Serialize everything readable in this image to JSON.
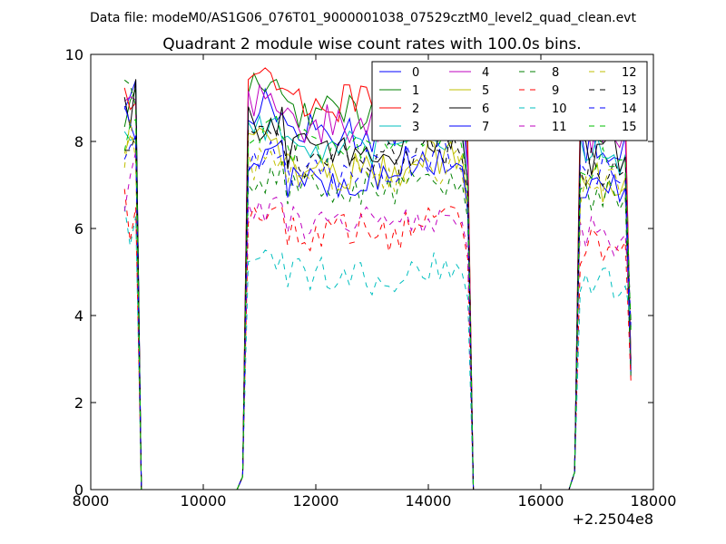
{
  "chart_data": {
    "type": "line",
    "suptitle": "Data file: modeM0/AS1G06_076T01_9000001038_07529cztM0_level2_quad_clean.evt",
    "title": "Quadrant 2 module wise count rates with 100.0s bins.",
    "xlabel": "",
    "ylabel": "",
    "xlim": [
      8000,
      18000
    ],
    "ylim": [
      0,
      10
    ],
    "x_offset_label": "+2.2504e8",
    "x_ticks": [
      "8000",
      "10000",
      "12000",
      "14000",
      "16000",
      "18000"
    ],
    "y_ticks": [
      "0",
      "2",
      "4",
      "6",
      "8",
      "10"
    ],
    "legend_position": "top-right",
    "x": [
      8600,
      8700,
      8800,
      8900,
      9000,
      10500,
      10600,
      10700,
      10800,
      10900,
      11000,
      11100,
      11200,
      11300,
      11400,
      11500,
      11600,
      11700,
      11800,
      11900,
      12000,
      12100,
      12200,
      12300,
      12400,
      12500,
      12600,
      12700,
      12800,
      12900,
      13000,
      13100,
      13200,
      13300,
      13400,
      13500,
      13600,
      13700,
      13800,
      13900,
      14000,
      14100,
      14200,
      14300,
      14400,
      14500,
      14600,
      14700,
      14800,
      14900,
      16500,
      16600,
      16700,
      16800,
      16900,
      17000,
      17100,
      17200,
      17300,
      17400,
      17500,
      17600
    ],
    "series": [
      {
        "name": "0",
        "color": "#0000ff",
        "dash": "solid",
        "level": 8.2,
        "pre": 9.1
      },
      {
        "name": "1",
        "color": "#008000",
        "dash": "solid",
        "level": 8.7,
        "pre": 8.6
      },
      {
        "name": "2",
        "color": "#ff0000",
        "dash": "solid",
        "level": 8.9,
        "pre": 9.4
      },
      {
        "name": "3",
        "color": "#00bfbf",
        "dash": "solid",
        "level": 7.8,
        "pre": 8.3
      },
      {
        "name": "4",
        "color": "#bf00bf",
        "dash": "solid",
        "level": 8.4,
        "pre": 8.9
      },
      {
        "name": "5",
        "color": "#bfbf00",
        "dash": "solid",
        "level": 7.3,
        "pre": 7.6
      },
      {
        "name": "6",
        "color": "#000000",
        "dash": "solid",
        "level": 7.8,
        "pre": 8.8
      },
      {
        "name": "7",
        "color": "#0000ff",
        "dash": "solid",
        "level": 7.1,
        "pre": 8.5
      },
      {
        "name": "8",
        "color": "#008000",
        "dash": "dashed",
        "level": 6.9,
        "pre": 9.0
      },
      {
        "name": "9",
        "color": "#ff0000",
        "dash": "dashed",
        "level": 5.9,
        "pre": 6.4
      },
      {
        "name": "10",
        "color": "#00bfbf",
        "dash": "dashed",
        "level": 4.9,
        "pre": 5.9
      },
      {
        "name": "11",
        "color": "#bf00bf",
        "dash": "dashed",
        "level": 6.1,
        "pre": 7.1
      },
      {
        "name": "12",
        "color": "#bfbf00",
        "dash": "dashed",
        "level": 7.2,
        "pre": 8.0
      },
      {
        "name": "13",
        "color": "#000000",
        "dash": "dashed",
        "level": 7.6,
        "pre": 8.3
      },
      {
        "name": "14",
        "color": "#0000ff",
        "dash": "dashed",
        "level": 7.4,
        "pre": 8.0
      },
      {
        "name": "15",
        "color": "#00bf00",
        "dash": "dashed",
        "level": 7.9,
        "pre": 8.1
      }
    ]
  }
}
